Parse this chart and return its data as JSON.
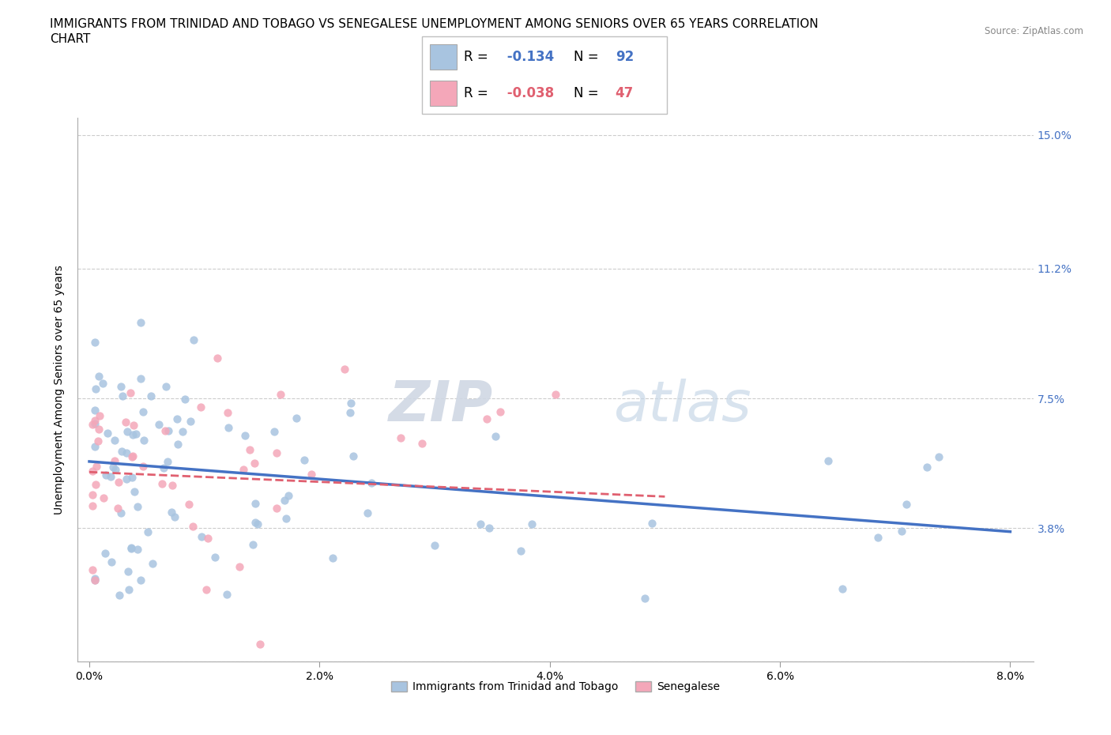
{
  "title_line1": "IMMIGRANTS FROM TRINIDAD AND TOBAGO VS SENEGALESE UNEMPLOYMENT AMONG SENIORS OVER 65 YEARS CORRELATION",
  "title_line2": "CHART",
  "source": "Source: ZipAtlas.com",
  "ylabel_label": "Unemployment Among Seniors over 65 years",
  "legend_label1": "Immigrants from Trinidad and Tobago",
  "legend_label2": "Senegalese",
  "R1": -0.134,
  "N1": 92,
  "R2": -0.038,
  "N2": 47,
  "xlim": [
    -0.001,
    0.082
  ],
  "ylim": [
    0.0,
    0.155
  ],
  "xticks": [
    0.0,
    0.02,
    0.04,
    0.06,
    0.08
  ],
  "xtick_labels": [
    "0.0%",
    "2.0%",
    "4.0%",
    "6.0%",
    "8.0%"
  ],
  "yticks": [
    0.0,
    0.038,
    0.075,
    0.112,
    0.15
  ],
  "ytick_labels_right": [
    "",
    "3.8%",
    "7.5%",
    "11.2%",
    "15.0%"
  ],
  "color_blue": "#a8c4e0",
  "color_pink": "#f4a7b9",
  "color_blue_line": "#4472c4",
  "color_pink_line": "#e06070",
  "watermark_zip": "ZIP",
  "watermark_atlas": "atlas",
  "grid_color": "#cccccc",
  "background_color": "#ffffff",
  "title_fontsize": 11,
  "axis_fontsize": 10,
  "tick_fontsize": 10,
  "right_tick_color": "#4472c4",
  "blue_line_start_y": 0.057,
  "blue_line_end_y": 0.037,
  "pink_line_start_y": 0.054,
  "pink_line_end_y": 0.047,
  "pink_line_end_x": 0.05
}
